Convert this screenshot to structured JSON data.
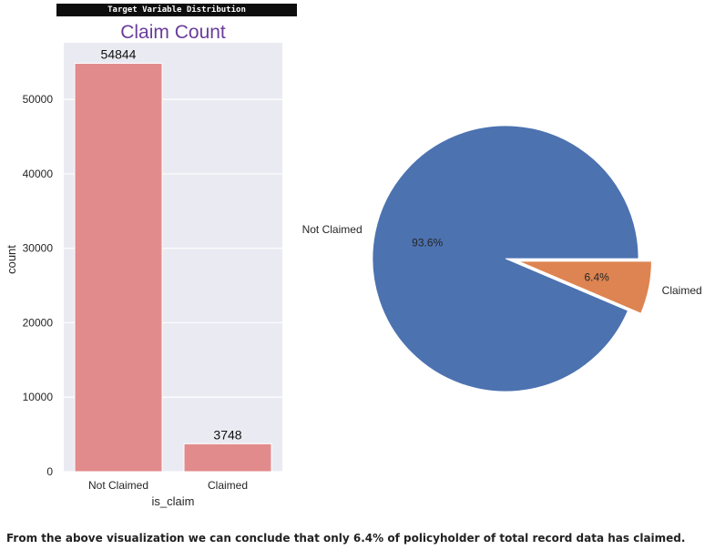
{
  "banner": "Target Variable Distribution",
  "conclusion": "From the above visualization we can conclude that only 6.4% of policyholder of total record data has claimed.",
  "chart_data": [
    {
      "type": "bar",
      "title": "Claim Count",
      "xlabel": "is_claim",
      "ylabel": "count",
      "categories": [
        "Not Claimed",
        "Claimed"
      ],
      "values": [
        54844,
        3748
      ],
      "value_labels": [
        "54844",
        "3748"
      ],
      "ylim": [
        0,
        57600
      ],
      "yticks": [
        0,
        10000,
        20000,
        30000,
        40000,
        50000
      ],
      "ytick_labels": [
        "0",
        "10000",
        "20000",
        "30000",
        "40000",
        "50000"
      ],
      "grid": true,
      "colors": {
        "bar": "#e28b8c",
        "background": "#eaeaf2",
        "title": "#6a3d9a"
      }
    },
    {
      "type": "pie",
      "labels": [
        "Not Claimed",
        "Claimed"
      ],
      "values": [
        93.6,
        6.4
      ],
      "pct_labels": [
        "93.6%",
        "6.4%"
      ],
      "explode": [
        0,
        0.1
      ],
      "colors": [
        "#4c72b0",
        "#dd8452"
      ]
    }
  ]
}
